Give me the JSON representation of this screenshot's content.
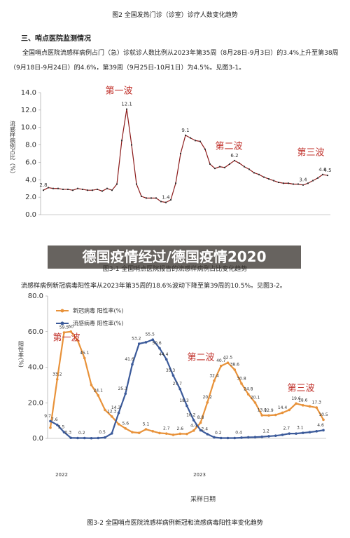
{
  "document": {
    "top_caption": "图2 全国发热门诊（诊室）诊疗人数变化趋势",
    "section_heading": "三、哨点医院监测情况",
    "paragraph_1": "全国哨点医院流感样病例占门（急）诊就诊人数比例从2023年第35周（8月28日-9月3日）的3.4%上升至第38周（9月18日-9月24日）的4.6%，第39周（9月25日-10月1日）为4.5%。见图3-1。",
    "paragraph_2": "流感样病例新冠病毒阳性率从2023年第35周的18.6%波动下降至第39周的10.5%。见图3-2。",
    "overlay_title": "德国疫情经过/德国疫情2020"
  },
  "chart_data": [
    {
      "type": "line",
      "y_label": "流感样病例占比（%）",
      "caption": "图3-1 全国哨点医院报告的流感样病例占比变化趋势",
      "annotations": [
        "第一波",
        "第二波",
        "第三波"
      ],
      "ylim": [
        0,
        14
      ],
      "yticks": [
        {
          "value": 0,
          "label": "0.0"
        },
        {
          "value": 2,
          "label": "2.0"
        },
        {
          "value": 4,
          "label": "4.0"
        },
        {
          "value": 6,
          "label": "6.0"
        },
        {
          "value": 8,
          "label": "8.0"
        },
        {
          "value": 10,
          "label": "10.0"
        },
        {
          "value": 12,
          "label": "12.0"
        },
        {
          "value": 14,
          "label": "14.0"
        }
      ],
      "series": [
        {
          "color": "#8b1a1a",
          "values": [
            2.8,
            3.1,
            3.0,
            3.0,
            2.9,
            2.9,
            2.8,
            3.0,
            2.9,
            2.8,
            2.8,
            2.9,
            2.7,
            3.0,
            2.8,
            3.5,
            8.5,
            12.1,
            8.0,
            3.5,
            2.1,
            1.9,
            1.9,
            1.9,
            1.5,
            1.4,
            1.7,
            3.6,
            7.0,
            9.1,
            8.8,
            8.5,
            8.4,
            7.5,
            5.8,
            5.3,
            5.5,
            5.4,
            5.8,
            6.2,
            5.9,
            5.5,
            5.2,
            4.8,
            4.6,
            4.3,
            4.1,
            3.9,
            3.7,
            3.6,
            3.6,
            3.5,
            3.5,
            3.4,
            3.6,
            3.9,
            4.2,
            4.6,
            4.5
          ],
          "value_labels": [
            "2.8",
            null,
            null,
            null,
            null,
            null,
            null,
            null,
            null,
            null,
            null,
            null,
            null,
            null,
            null,
            null,
            null,
            "12.1",
            null,
            null,
            null,
            null,
            null,
            null,
            null,
            "1.4",
            null,
            null,
            null,
            "9.1",
            null,
            null,
            null,
            null,
            null,
            null,
            null,
            null,
            null,
            "6.2",
            null,
            null,
            null,
            null,
            null,
            null,
            null,
            null,
            null,
            null,
            null,
            null,
            null,
            "3.4",
            null,
            null,
            null,
            "4.6",
            "4.5"
          ]
        }
      ]
    },
    {
      "type": "line",
      "y_label": "阳性率(%)",
      "x_label": "采样日期",
      "caption": "图3-2 全国哨点医院流感样病例新冠和流感病毒阳性率变化趋势",
      "annotations": [
        "第一波",
        "第二波",
        "第三波"
      ],
      "year_labels": [
        "2022",
        "2023"
      ],
      "ylim": [
        0,
        80
      ],
      "yticks": [
        {
          "value": 0,
          "label": "0.0"
        },
        {
          "value": 20,
          "label": "20.0"
        },
        {
          "value": 40,
          "label": "40.0"
        },
        {
          "value": 60,
          "label": "60.0"
        },
        {
          "value": 80,
          "label": "80.0"
        }
      ],
      "series": [
        {
          "name": "新冠病毒  阳性率(%)",
          "color": "#e8923a",
          "values": [
            6.0,
            33.2,
            59.5,
            60.0,
            55.0,
            45.1,
            30.0,
            24.1,
            16.0,
            12.3,
            8.0,
            5.6,
            3.5,
            3.1,
            5.1,
            4.0,
            3.0,
            2.7,
            2.0,
            2.6,
            2.5,
            4.4,
            8.8,
            20.2,
            32.4,
            40.7,
            42.5,
            38.6,
            30.8,
            24.8,
            20.1,
            13.0,
            12.9,
            13.2,
            14.4,
            16.0,
            19.6,
            18.6,
            18.0,
            17.3,
            10.5
          ],
          "value_labels": [
            null,
            "33.2",
            "59.5",
            "60",
            null,
            "45.1",
            null,
            "24.1",
            null,
            "12.3",
            null,
            "5.6",
            null,
            null,
            "5.1",
            null,
            null,
            "2.7",
            null,
            "2.6",
            null,
            "4.4",
            "8.8",
            "20.2",
            "32.4",
            "40.7",
            "42.5",
            "38.6",
            "30.8",
            "24.8",
            "20.1",
            "13.0",
            "12.9",
            null,
            "14.4",
            null,
            "19.6",
            "18.6",
            null,
            "17.3",
            "10.5"
          ]
        },
        {
          "name": "流感病毒  阳性率(%)",
          "color": "#3b5a9a",
          "values": [
            9.7,
            7.6,
            3.5,
            0.3,
            0.2,
            0.2,
            0.1,
            0.2,
            0.5,
            2.8,
            14.3,
            25.1,
            41.6,
            53.2,
            54.0,
            55.5,
            50.6,
            44.4,
            35.3,
            27.7,
            18.3,
            10.2,
            4.6,
            2.4,
            0.6,
            0.2,
            0.2,
            0.2,
            0.4,
            0.6,
            0.7,
            0.9,
            1.2,
            1.5,
            2.0,
            2.7,
            2.7,
            3.1,
            3.5,
            4.0,
            4.6
          ],
          "value_labels": [
            "9.7",
            "7.6",
            "3.5",
            "0.3",
            null,
            "0.2",
            null,
            null,
            "0.5",
            null,
            "14.3",
            "25.1",
            "41.6",
            "53.2",
            null,
            "55.5",
            "50.6",
            "44.4",
            "35.3",
            "27.7",
            "18.3",
            "10.2",
            null,
            "2.4",
            null,
            "0.2",
            null,
            null,
            "0.4",
            null,
            null,
            null,
            "1.2",
            null,
            null,
            "2.7",
            null,
            "3.1",
            null,
            null,
            "4.6"
          ]
        }
      ]
    }
  ]
}
